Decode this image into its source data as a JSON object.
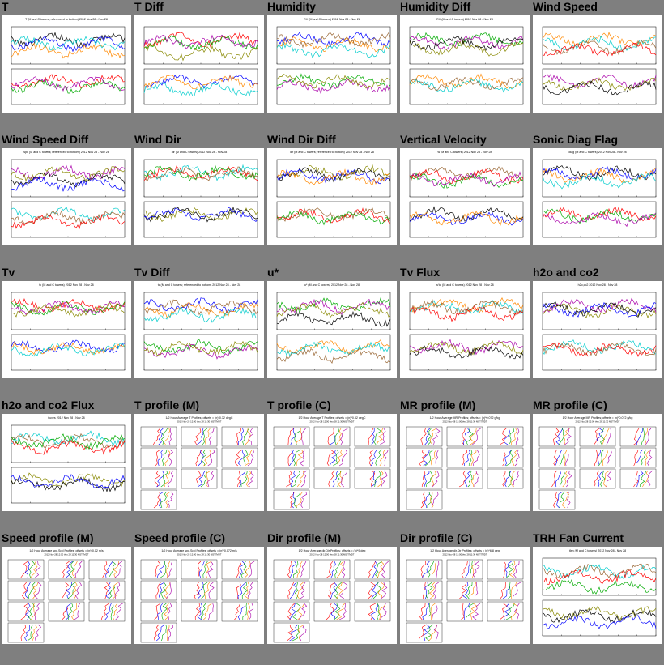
{
  "panels": [
    {
      "title": "T",
      "kind": "ts",
      "header": "T (M and C towers; referenced to bottom) 2012 Nov 28 - Nov 28"
    },
    {
      "title": "T Diff",
      "kind": "ts",
      "header": ""
    },
    {
      "title": "Humidity",
      "kind": "ts",
      "header": "RH (M and C towers) 2012 Nov 28 - Nov 28"
    },
    {
      "title": "Humidity Diff",
      "kind": "ts",
      "header": "RH (M and C towers) 2012 Nov 28 - Nov 28"
    },
    {
      "title": "Wind Speed",
      "kind": "ts",
      "header": ""
    },
    {
      "title": "Wind Speed Diff",
      "kind": "ts",
      "header": "spd (M and C towers; referenced to bottom) 2012 Nov 28 - Nov 28"
    },
    {
      "title": "Wind Dir",
      "kind": "ts",
      "header": "dir (M and C towers) 2012 Nov 28 - Nov 28"
    },
    {
      "title": "Wind Dir Diff",
      "kind": "ts",
      "header": "dir (M and C towers; referenced to bottom) 2012 Nov 28 - Nov 28"
    },
    {
      "title": "Vertical Velocity",
      "kind": "ts",
      "header": "w (M and C towers) 2012 Nov 28 - Nov 28"
    },
    {
      "title": "Sonic Diag Flag",
      "kind": "ts",
      "header": "diag (M and C towers) 2012 Nov 28 - Nov 28"
    },
    {
      "title": "Tv",
      "kind": "ts",
      "header": "tc (M and C towers) 2012 Nov 28 - Nov 28"
    },
    {
      "title": "Tv Diff",
      "kind": "ts",
      "header": "tc (M and C towers; referenced to bottom) 2012 Nov 28 - Nov 28"
    },
    {
      "title": "u*",
      "kind": "ts",
      "header": "u* (M and C towers) 2012 Nov 28 - Nov 28"
    },
    {
      "title": "Tv Flux",
      "kind": "ts",
      "header": "w'tc' (M and C towers) 2012 Nov 28 - Nov 28"
    },
    {
      "title": "h2o and co2",
      "kind": "ts",
      "header": "h2o,co2 2012 Nov 28 - Nov 28"
    },
    {
      "title": "h2o and co2 Flux",
      "kind": "ts",
      "header": "fluxes 2012 Nov 28 - Nov 28"
    },
    {
      "title": "T profile (M)",
      "kind": "prof",
      "header": "1/2 Hour Average T Profiles; offsets = (n)*0.32 degC",
      "sub": "2012 Nov 28 12:00 thru 28 11:30 MST7MDT"
    },
    {
      "title": "T profile (C)",
      "kind": "prof",
      "header": "1/2 Hour Average T Profiles; offsets = (n)*0.32 degC",
      "sub": "2012 Nov 28 12:00 thru 28 11:30 MST7MDT"
    },
    {
      "title": "MR profile (M)",
      "kind": "prof",
      "header": "1/2 Hour Average MR Profiles; offsets = (n)*0.072 g/kg",
      "sub": "2012 Nov 28 12:00 thru 28 11:30 MST7MDT"
    },
    {
      "title": "MR profile (C)",
      "kind": "prof",
      "header": "1/2 Hour Average MR Profiles; offsets = (n)*0.072 g/kg",
      "sub": "2012 Nov 28 12:00 thru 28 11:30 MST7MDT"
    },
    {
      "title": "Speed profile (M)",
      "kind": "prof",
      "header": "1/2 Hour Average spd.Spd Profiles; offsets = (n)*0.12 m/s",
      "sub": "2012 Nov 28 12:00 thru 28 11:30 MST7MDT"
    },
    {
      "title": "Speed profile (C)",
      "kind": "prof",
      "header": "1/2 Hour Average spd.Spd Profiles; offsets = (n)*0.072 m/s",
      "sub": "2012 Nov 28 12:00 thru 28 11:30 MST7MDT"
    },
    {
      "title": "Dir profile (M)",
      "kind": "prof",
      "header": "1/2 Hour Average dir.Dir Profiles; offsets = (n)*9 deg",
      "sub": "2012 Nov 28 12:00 thru 28 11:30 MST7MDT"
    },
    {
      "title": "Dir profile (C)",
      "kind": "prof",
      "header": "1/2 Hour Average dir.Dir Profiles; offsets = (n)*6.8 deg",
      "sub": "2012 Nov 28 12:00 thru 28 11:30 MST7MDT"
    },
    {
      "title": "TRH Fan Current",
      "kind": "ts",
      "header": "ifan (M and C towers) 2012 Nov 28 - Nov 28"
    }
  ],
  "colors": {
    "background": "#7f7f7f",
    "thumb_bg": "#ffffff",
    "series": [
      "#000000",
      "#ff0000",
      "#0000ff",
      "#00aa00",
      "#ff8800",
      "#aa00aa",
      "#00cccc",
      "#888800",
      "#996633"
    ]
  }
}
